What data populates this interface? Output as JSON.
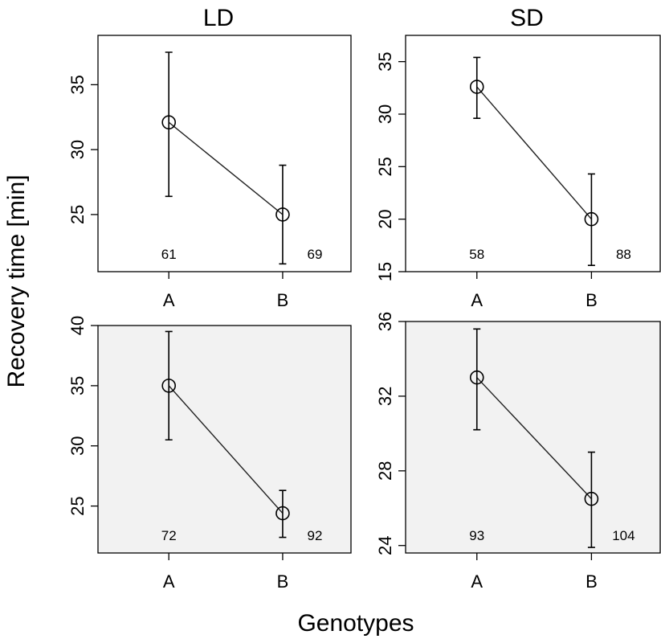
{
  "ylabel": "Recovery time [min]",
  "xlabel": "Genotypes",
  "column_titles": [
    "LD",
    "SD"
  ],
  "chart_data": [
    {
      "type": "line",
      "title": "LD",
      "categories": [
        "A",
        "B"
      ],
      "values": [
        32.1,
        25.0
      ],
      "error_low": [
        26.4,
        21.2
      ],
      "error_high": [
        37.5,
        28.8
      ],
      "sample_sizes": [
        "61",
        "69"
      ],
      "ylim": [
        20.6,
        38.8
      ],
      "yticks": [
        25,
        30,
        35
      ],
      "shaded": false
    },
    {
      "type": "line",
      "title": "SD",
      "categories": [
        "A",
        "B"
      ],
      "values": [
        32.6,
        20.0
      ],
      "error_low": [
        29.6,
        15.6
      ],
      "error_high": [
        35.4,
        24.3
      ],
      "sample_sizes": [
        "58",
        "88"
      ],
      "ylim": [
        15.0,
        37.5
      ],
      "yticks": [
        15,
        20,
        25,
        30,
        35
      ],
      "shaded": false
    },
    {
      "type": "line",
      "title": "",
      "categories": [
        "A",
        "B"
      ],
      "values": [
        35.0,
        24.4
      ],
      "error_low": [
        30.5,
        22.4
      ],
      "error_high": [
        39.5,
        26.3
      ],
      "sample_sizes": [
        "72",
        "92"
      ],
      "ylim": [
        21.1,
        40.0
      ],
      "yticks": [
        25,
        30,
        35,
        40
      ],
      "shaded": true
    },
    {
      "type": "line",
      "title": "",
      "categories": [
        "A",
        "B"
      ],
      "values": [
        33.0,
        26.5
      ],
      "error_low": [
        30.2,
        23.9
      ],
      "error_high": [
        35.6,
        29.0
      ],
      "sample_sizes": [
        "93",
        "104"
      ],
      "ylim": [
        23.6,
        36.0
      ],
      "yticks": [
        24,
        28,
        32,
        36
      ],
      "shaded": true
    }
  ]
}
